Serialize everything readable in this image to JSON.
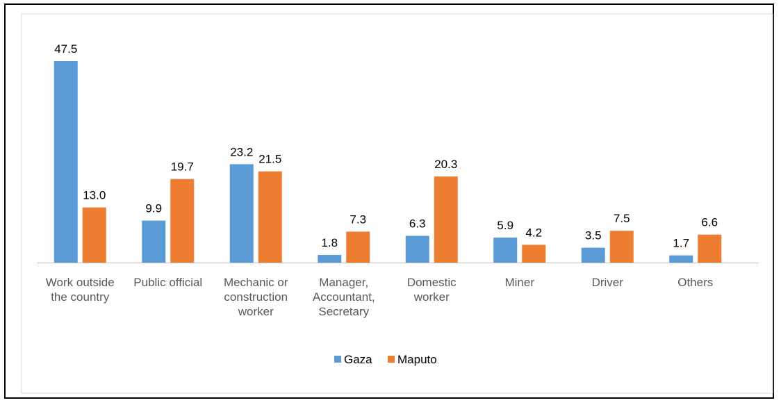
{
  "chart_data": {
    "type": "bar",
    "categories": [
      [
        "Work outside",
        "the country"
      ],
      [
        "Public official"
      ],
      [
        "Mechanic or",
        "construction",
        "worker"
      ],
      [
        "Manager,",
        "Accountant,",
        "Secretary"
      ],
      [
        "Domestic",
        "worker"
      ],
      [
        "Miner"
      ],
      [
        "Driver"
      ],
      [
        "Others"
      ]
    ],
    "series": [
      {
        "name": "Gaza",
        "color": "#5B9BD5",
        "values": [
          47.5,
          9.9,
          23.2,
          1.8,
          6.3,
          5.9,
          3.5,
          1.7
        ],
        "labels": [
          "47.5",
          "9.9",
          "23.2",
          "1.8",
          "6.3",
          "5.9",
          "3.5",
          "1.7"
        ]
      },
      {
        "name": "Maputo",
        "color": "#ED7D31",
        "values": [
          13.0,
          19.7,
          21.5,
          7.3,
          20.3,
          4.2,
          7.5,
          6.6
        ],
        "labels": [
          "13.0",
          "19.7",
          "21.5",
          "7.3",
          "20.3",
          "4.2",
          "7.5",
          "6.6"
        ]
      }
    ],
    "title": "",
    "xlabel": "",
    "ylabel": "",
    "ylim": [
      0,
      50
    ],
    "grid": false,
    "legend": "bottom"
  }
}
